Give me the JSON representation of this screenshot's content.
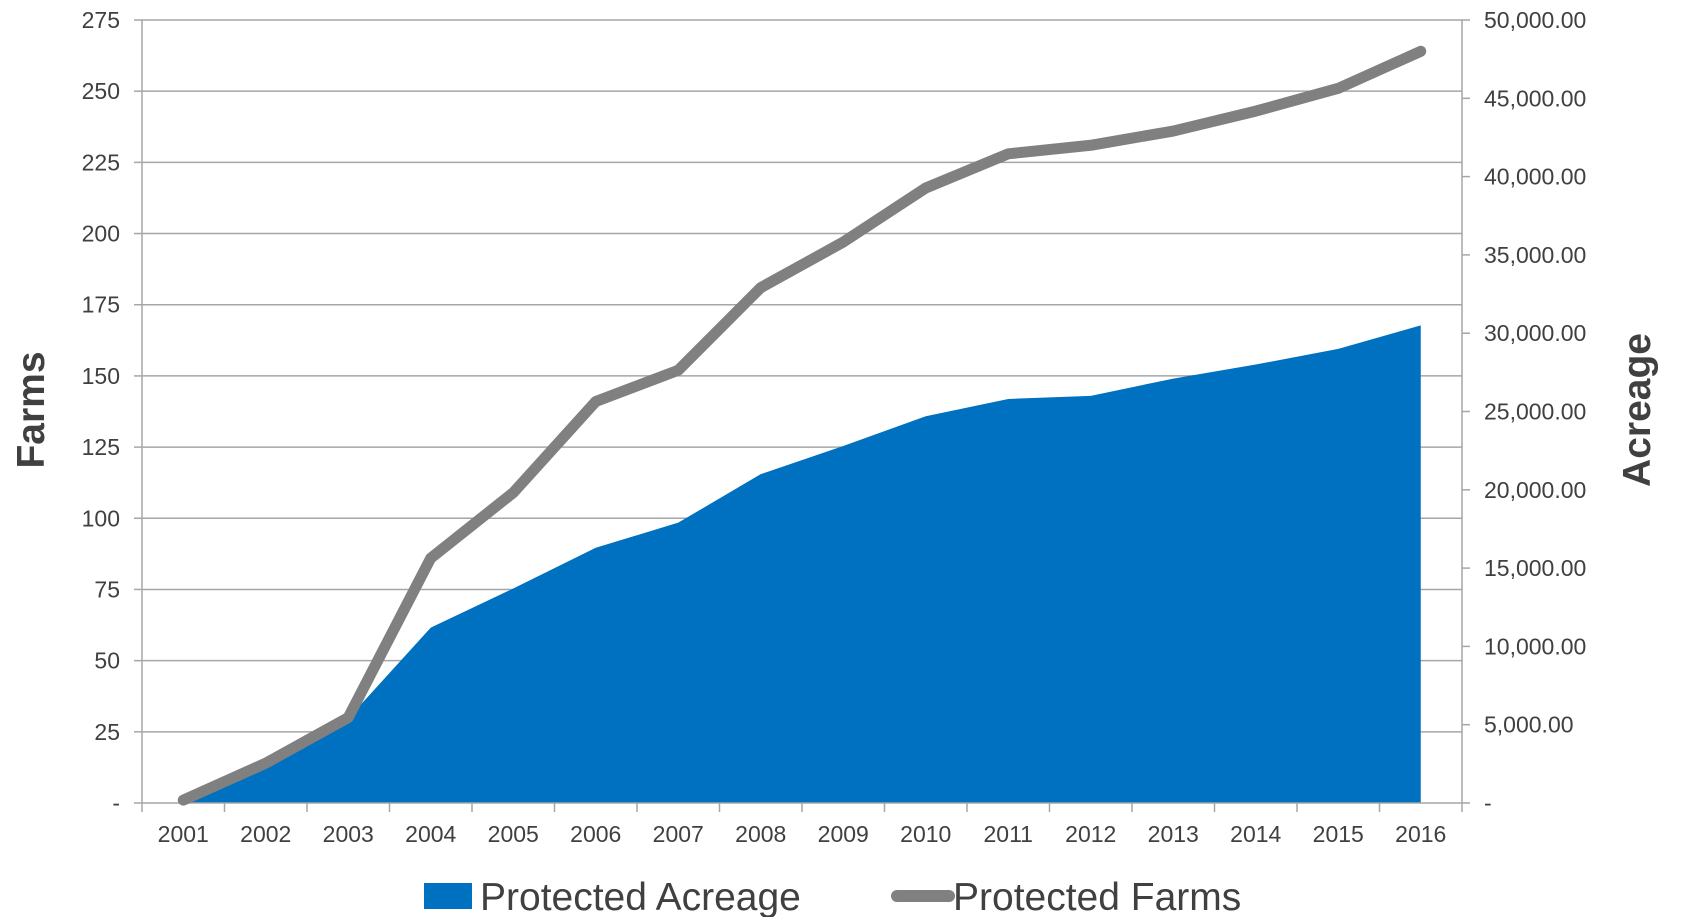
{
  "chart_data": {
    "type": "area+line",
    "categories": [
      "2001",
      "2002",
      "2003",
      "2004",
      "2005",
      "2006",
      "2007",
      "2008",
      "2009",
      "2010",
      "2011",
      "2012",
      "2013",
      "2014",
      "2015",
      "2016"
    ],
    "series": [
      {
        "name": "Protected Acreage",
        "type": "area",
        "axis": "right",
        "color": "#0070C0",
        "values": [
          150,
          2300,
          5400,
          11200,
          13700,
          16300,
          17900,
          21000,
          22800,
          24700,
          25800,
          26000,
          27100,
          28000,
          29000,
          30500
        ]
      },
      {
        "name": "Protected Farms",
        "type": "line",
        "axis": "left",
        "color": "#808080",
        "values": [
          1,
          14,
          30,
          86,
          109,
          141,
          152,
          181,
          197,
          216,
          228,
          231,
          236,
          243,
          251,
          264
        ]
      }
    ],
    "y_left": {
      "label": "Farms",
      "range": [
        0,
        275
      ],
      "ticks": [
        {
          "value": 0,
          "label": "-"
        },
        {
          "value": 25,
          "label": "25"
        },
        {
          "value": 50,
          "label": "50"
        },
        {
          "value": 75,
          "label": "75"
        },
        {
          "value": 100,
          "label": "100"
        },
        {
          "value": 125,
          "label": "125"
        },
        {
          "value": 150,
          "label": "150"
        },
        {
          "value": 175,
          "label": "175"
        },
        {
          "value": 200,
          "label": "200"
        },
        {
          "value": 225,
          "label": "225"
        },
        {
          "value": 250,
          "label": "250"
        },
        {
          "value": 275,
          "label": "275"
        }
      ]
    },
    "y_right": {
      "label": "Acreage",
      "range": [
        0,
        50000
      ],
      "ticks": [
        {
          "value": 0,
          "label": "-"
        },
        {
          "value": 5000,
          "label": "5,000.00"
        },
        {
          "value": 10000,
          "label": "10,000.00"
        },
        {
          "value": 15000,
          "label": "15,000.00"
        },
        {
          "value": 20000,
          "label": "20,000.00"
        },
        {
          "value": 25000,
          "label": "25,000.00"
        },
        {
          "value": 30000,
          "label": "30,000.00"
        },
        {
          "value": 35000,
          "label": "35,000.00"
        },
        {
          "value": 40000,
          "label": "40,000.00"
        },
        {
          "value": 45000,
          "label": "45,000.00"
        },
        {
          "value": 50000,
          "label": "50,000.00"
        }
      ]
    },
    "grid": true,
    "legend": {
      "position": "bottom",
      "items": [
        "Protected Acreage",
        "Protected Farms"
      ]
    }
  }
}
